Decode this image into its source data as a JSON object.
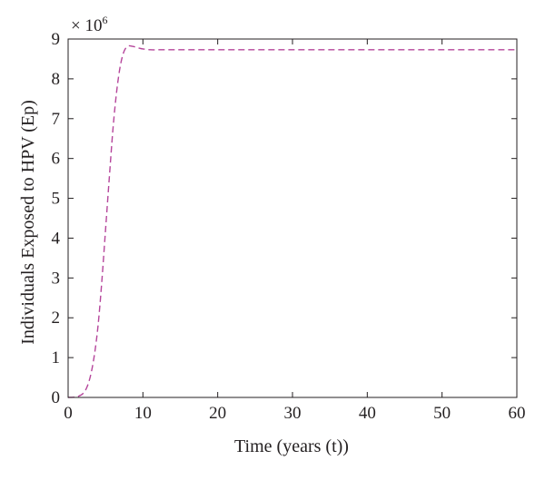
{
  "chart_data": {
    "type": "line",
    "title": "",
    "xlabel": "Time (years (t))",
    "ylabel": "Individuals Exposed to HPV (Ep)",
    "multiplier_label": "× 10",
    "multiplier_exponent": "6",
    "xlim": [
      0,
      60
    ],
    "ylim": [
      0,
      9
    ],
    "x_ticks": [
      0,
      10,
      20,
      30,
      40,
      50,
      60
    ],
    "y_ticks": [
      0,
      1,
      2,
      3,
      4,
      5,
      6,
      7,
      8,
      9
    ],
    "grid": false,
    "line_style": "dashed",
    "series": [
      {
        "color": "#b5459b",
        "x": [
          0,
          1,
          1.5,
          2,
          2.5,
          3,
          3.5,
          4,
          4.5,
          5,
          5.5,
          6,
          6.5,
          7,
          7.5,
          8,
          8.5,
          9,
          9.5,
          10,
          11,
          12,
          13,
          14,
          15,
          20,
          30,
          40,
          50,
          60
        ],
        "y": [
          0,
          0.01,
          0.04,
          0.1,
          0.25,
          0.55,
          1.05,
          1.8,
          2.9,
          4.2,
          5.5,
          6.75,
          7.7,
          8.35,
          8.7,
          8.82,
          8.82,
          8.8,
          8.77,
          8.75,
          8.73,
          8.73,
          8.73,
          8.73,
          8.73,
          8.73,
          8.73,
          8.73,
          8.73,
          8.73
        ]
      }
    ]
  }
}
